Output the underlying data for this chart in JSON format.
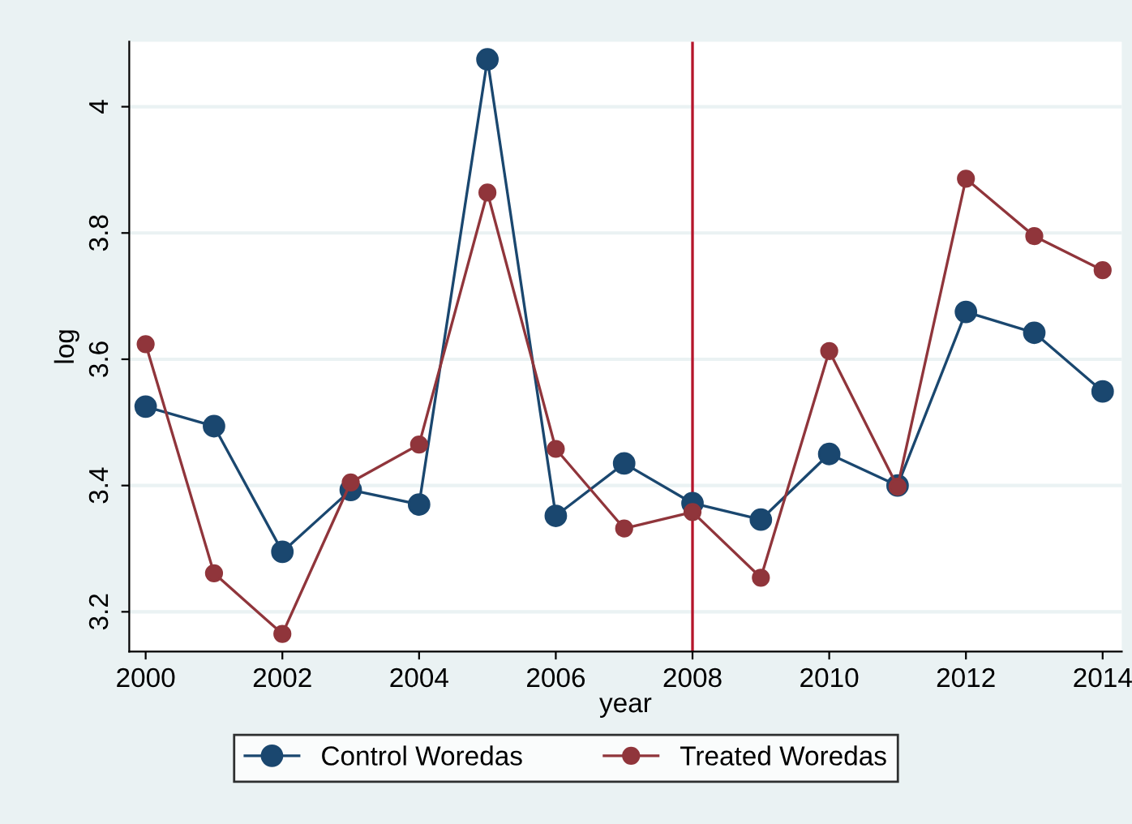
{
  "chart_data": {
    "type": "line",
    "xlabel": "year",
    "ylabel": "log",
    "x": [
      2000,
      2001,
      2002,
      2003,
      2004,
      2005,
      2006,
      2007,
      2008,
      2009,
      2010,
      2011,
      2012,
      2013,
      2014
    ],
    "series": [
      {
        "name": "Control Woredas",
        "color": "#1a476f",
        "values": [
          3.525,
          3.494,
          3.295,
          3.393,
          3.37,
          4.075,
          3.352,
          3.435,
          3.372,
          3.346,
          3.45,
          3.4,
          3.675,
          3.642,
          3.549
        ]
      },
      {
        "name": "Treated Woredas",
        "color": "#90353b",
        "values": [
          3.624,
          3.261,
          3.165,
          3.405,
          3.465,
          3.864,
          3.458,
          3.332,
          3.358,
          3.254,
          3.613,
          3.398,
          3.886,
          3.795,
          3.741
        ]
      }
    ],
    "xlim": [
      1999.76,
      2014.28
    ],
    "ylim": [
      3.137,
      4.103
    ],
    "xticks": [
      2000,
      2002,
      2004,
      2006,
      2008,
      2010,
      2012,
      2014
    ],
    "yticks": [
      {
        "value": 3.2,
        "label": "3.2"
      },
      {
        "value": 3.4,
        "label": "3.4"
      },
      {
        "value": 3.6,
        "label": "3.6"
      },
      {
        "value": 3.8,
        "label": "3.8"
      },
      {
        "value": 4,
        "label": "4"
      }
    ],
    "ref_lines": [
      {
        "axis": "x",
        "value": 2008,
        "color": "#b5152b"
      }
    ],
    "grid": "y",
    "legend": "bottom",
    "marker": "circle",
    "line_style": "solid"
  }
}
